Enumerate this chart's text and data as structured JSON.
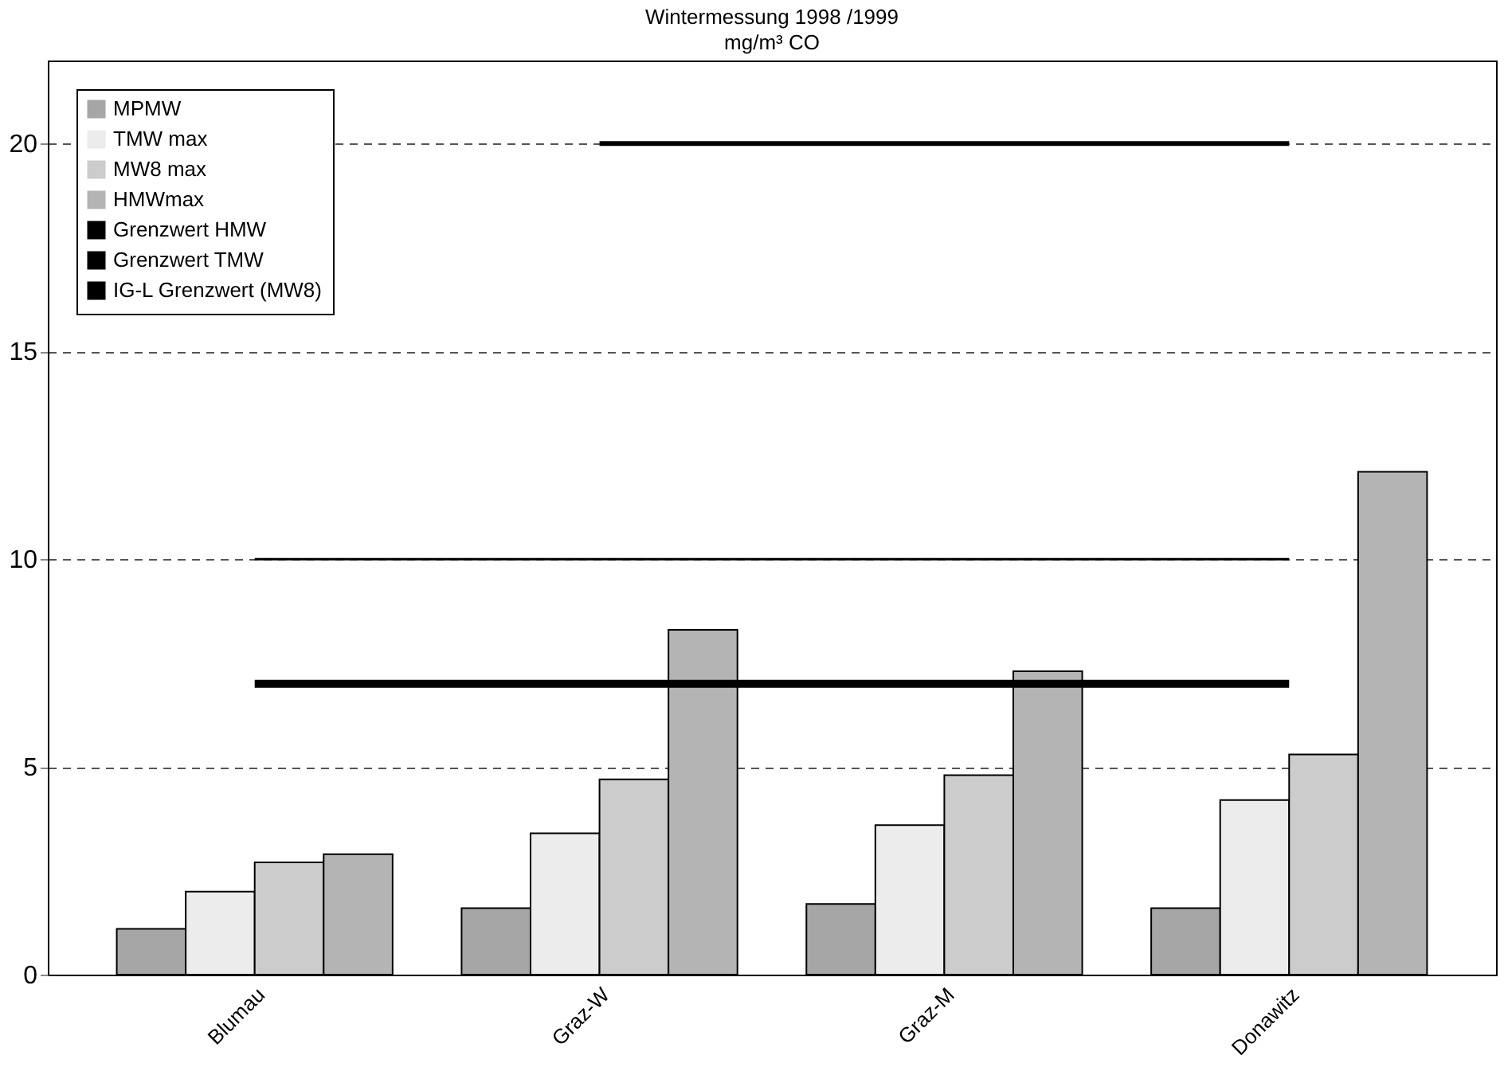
{
  "chart_data": {
    "type": "bar",
    "title": "Wintermessung 1998 /1999",
    "ylabel": "mg/m³ CO",
    "categories": [
      "Blumau",
      "Graz-W",
      "Graz-M",
      "Donawitz"
    ],
    "series": [
      {
        "name": "MPMW",
        "color": "#a6a6a6",
        "values": [
          1.1,
          1.6,
          1.7,
          1.6
        ]
      },
      {
        "name": "TMW max",
        "color": "#ececec",
        "values": [
          2.0,
          3.4,
          3.6,
          4.2
        ]
      },
      {
        "name": "MW8 max",
        "color": "#cccccc",
        "values": [
          2.7,
          4.7,
          4.8,
          5.3
        ]
      },
      {
        "name": "HMWmax",
        "color": "#b4b4b4",
        "values": [
          2.9,
          8.3,
          7.3,
          12.1
        ]
      },
      {
        "name": "Grenzwert HMW",
        "color": "#000000",
        "type": "line",
        "values": [
          7,
          7,
          7,
          7
        ]
      },
      {
        "name": "Grenzwert TMW",
        "color": "#000000",
        "type": "line",
        "values": [
          null,
          20,
          20,
          20
        ]
      },
      {
        "name": "IG-L Grenzwert (MW8)",
        "color": "#000000",
        "type": "line",
        "values": [
          10,
          10,
          10,
          10
        ]
      }
    ],
    "ylim": [
      0,
      22
    ],
    "yticks": [
      0,
      5,
      10,
      15,
      20
    ],
    "grid": "y",
    "legend": "top left"
  }
}
